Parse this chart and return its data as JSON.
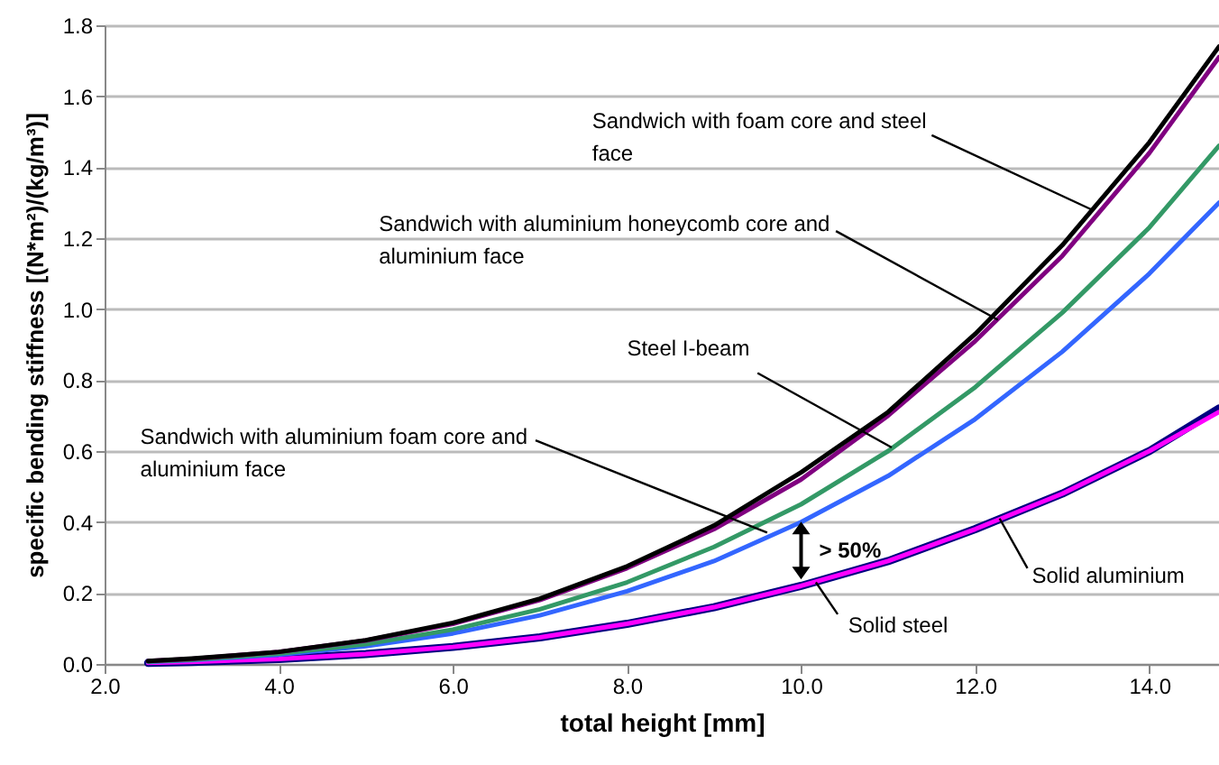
{
  "chart_data": {
    "type": "line",
    "xlabel": "total height [mm]",
    "ylabel": "specific bending stiffness [(N*m²)/(kg/m³)]",
    "x": [
      2.5,
      3,
      4,
      5,
      6,
      7,
      8,
      9,
      10,
      11,
      12,
      13,
      14,
      14.8
    ],
    "xlim": [
      2,
      14.8
    ],
    "xticks": [
      {
        "value": 2,
        "label": "2.0"
      },
      {
        "value": 4,
        "label": "4.0"
      },
      {
        "value": 6,
        "label": "6.0"
      },
      {
        "value": 8,
        "label": "8.0"
      },
      {
        "value": 10,
        "label": "10.0"
      },
      {
        "value": 12,
        "label": "12.0"
      },
      {
        "value": 14,
        "label": "14.0"
      }
    ],
    "ylim": [
      0,
      1.8
    ],
    "yticks": [
      {
        "value": 0,
        "label": "0.0"
      },
      {
        "value": 0.2,
        "label": "0.2"
      },
      {
        "value": 0.4,
        "label": "0.4"
      },
      {
        "value": 0.6,
        "label": "0.6"
      },
      {
        "value": 0.8,
        "label": "0.8"
      },
      {
        "value": 1,
        "label": "1.0"
      },
      {
        "value": 1.2,
        "label": "1.2"
      },
      {
        "value": 1.4,
        "label": "1.4"
      },
      {
        "value": 1.6,
        "label": "1.6"
      },
      {
        "value": 1.8,
        "label": "1.8"
      }
    ],
    "grid": "y",
    "line_style": "solid",
    "series": [
      {
        "color": "#000080",
        "values": [
          0.003,
          0.006,
          0.014,
          0.028,
          0.048,
          0.075,
          0.113,
          0.16,
          0.22,
          0.29,
          0.38,
          0.48,
          0.6,
          0.72
        ]
      },
      {
        "color": "#ff00ff",
        "values": [
          0.003,
          0.006,
          0.014,
          0.028,
          0.048,
          0.075,
          0.113,
          0.16,
          0.22,
          0.29,
          0.38,
          0.48,
          0.6,
          0.71
        ]
      },
      {
        "color": "#3366ff",
        "values": [
          0.006,
          0.011,
          0.026,
          0.05,
          0.086,
          0.137,
          0.205,
          0.29,
          0.4,
          0.53,
          0.69,
          0.88,
          1.1,
          1.3
        ]
      },
      {
        "color": "#339966",
        "values": [
          0.007,
          0.012,
          0.029,
          0.056,
          0.097,
          0.154,
          0.23,
          0.33,
          0.45,
          0.6,
          0.78,
          0.99,
          1.23,
          1.46
        ]
      },
      {
        "color": "#800080",
        "values": [
          0.008,
          0.014,
          0.034,
          0.066,
          0.113,
          0.18,
          0.27,
          0.38,
          0.52,
          0.7,
          0.91,
          1.15,
          1.44,
          1.71
        ]
      },
      {
        "color": "#000000",
        "values": [
          0.008,
          0.015,
          0.034,
          0.067,
          0.116,
          0.184,
          0.275,
          0.39,
          0.54,
          0.71,
          0.93,
          1.18,
          1.47,
          1.74
        ]
      }
    ],
    "annotations": [
      {
        "text": "Sandwich with foam core and steel face",
        "x": 13.34,
        "y": 1.28
      },
      {
        "text": "Sandwich with aluminium honeycomb core and aluminium face",
        "x": 12.26,
        "y": 0.97
      },
      {
        "text": "Steel I-beam",
        "x": 11.04,
        "y": 0.61
      },
      {
        "text": "Sandwich with aluminium foam core and aluminium face",
        "x": 9.61,
        "y": 0.37
      },
      "> 50%",
      {
        "text": "Solid steel",
        "x": 10.17,
        "y": 0.23
      },
      {
        "text": "Solid aluminium",
        "x": 12.28,
        "y": 0.41
      }
    ]
  }
}
